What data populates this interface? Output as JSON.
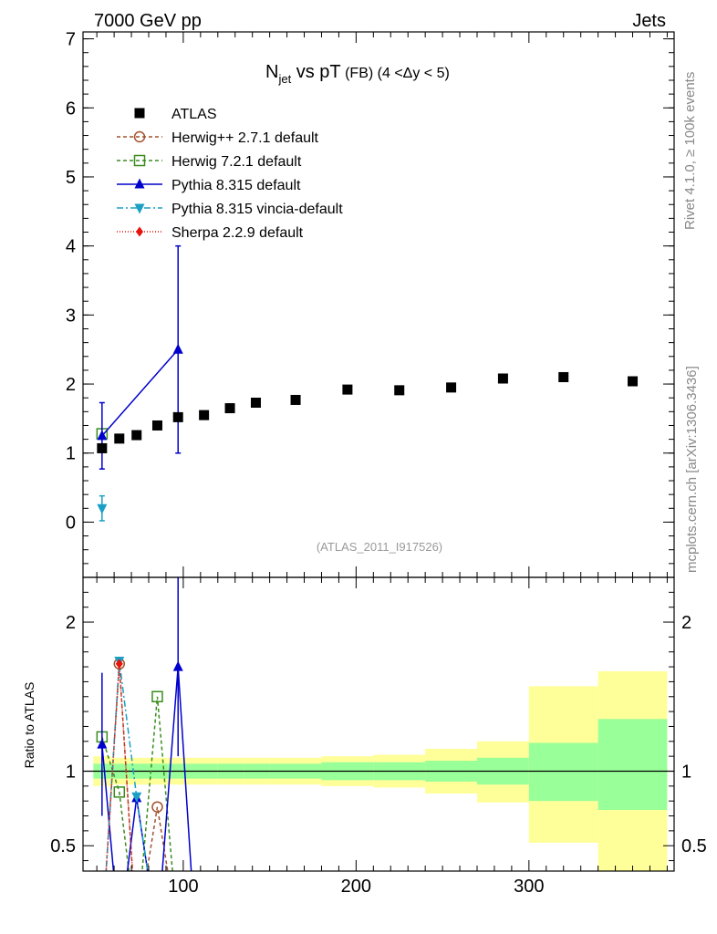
{
  "header": {
    "left": "7000 GeV pp",
    "right": "Jets"
  },
  "side_labels": {
    "rivet": "Rivet 4.1.0, ≥ 100k events",
    "mcplots": "mcplots.cern.ch [arXiv:1306.3436]"
  },
  "chart_data": {
    "type": "scatter",
    "title": {
      "main": "N",
      "sub": "jet",
      "mid": " vs pT",
      "small": " (FB) ",
      "cut": "(4 <Δy < 5)"
    },
    "watermark": "(ATLAS_2011_I917526)",
    "ratio_ylabel": "Ratio to ATLAS",
    "x_range": [
      42,
      384
    ],
    "main_y_range": [
      -0.8,
      7.1
    ],
    "ratio_y_range": [
      0.33,
      2.3
    ],
    "x_ticks": [
      100,
      200,
      300
    ],
    "main_y_ticks": [
      0,
      1,
      2,
      3,
      4,
      5,
      6,
      7
    ],
    "ratio_y_ticks": [
      0.5,
      1,
      2
    ],
    "data": {
      "name": "ATLAS",
      "x": [
        53,
        63,
        73,
        85,
        97,
        112,
        127,
        142,
        165,
        195,
        225,
        255,
        285,
        320,
        360
      ],
      "y": [
        1.07,
        1.21,
        1.26,
        1.4,
        1.52,
        1.55,
        1.65,
        1.73,
        1.77,
        1.92,
        1.91,
        1.95,
        2.08,
        2.1,
        2.04
      ]
    },
    "bands": [
      {
        "x0": 48,
        "x1": 58,
        "stat": [
          0.95,
          1.05
        ],
        "syst": [
          0.9,
          1.1
        ]
      },
      {
        "x0": 58,
        "x1": 68,
        "stat": [
          0.95,
          1.05
        ],
        "syst": [
          0.91,
          1.09
        ]
      },
      {
        "x0": 68,
        "x1": 79,
        "stat": [
          0.95,
          1.05
        ],
        "syst": [
          0.91,
          1.09
        ]
      },
      {
        "x0": 79,
        "x1": 91,
        "stat": [
          0.95,
          1.05
        ],
        "syst": [
          0.91,
          1.09
        ]
      },
      {
        "x0": 91,
        "x1": 104,
        "stat": [
          0.95,
          1.05
        ],
        "syst": [
          0.91,
          1.09
        ]
      },
      {
        "x0": 104,
        "x1": 120,
        "stat": [
          0.95,
          1.05
        ],
        "syst": [
          0.91,
          1.09
        ]
      },
      {
        "x0": 120,
        "x1": 135,
        "stat": [
          0.95,
          1.05
        ],
        "syst": [
          0.91,
          1.09
        ]
      },
      {
        "x0": 135,
        "x1": 150,
        "stat": [
          0.95,
          1.05
        ],
        "syst": [
          0.91,
          1.09
        ]
      },
      {
        "x0": 150,
        "x1": 180,
        "stat": [
          0.95,
          1.05
        ],
        "syst": [
          0.91,
          1.09
        ]
      },
      {
        "x0": 180,
        "x1": 210,
        "stat": [
          0.94,
          1.06
        ],
        "syst": [
          0.9,
          1.1
        ]
      },
      {
        "x0": 210,
        "x1": 240,
        "stat": [
          0.94,
          1.06
        ],
        "syst": [
          0.89,
          1.11
        ]
      },
      {
        "x0": 240,
        "x1": 270,
        "stat": [
          0.93,
          1.07
        ],
        "syst": [
          0.85,
          1.15
        ]
      },
      {
        "x0": 270,
        "x1": 300,
        "stat": [
          0.91,
          1.09
        ],
        "syst": [
          0.79,
          1.2
        ]
      },
      {
        "x0": 300,
        "x1": 340,
        "stat": [
          0.8,
          1.19
        ],
        "syst": [
          0.52,
          1.57
        ]
      },
      {
        "x0": 340,
        "x1": 380,
        "stat": [
          0.74,
          1.35
        ],
        "syst": [
          0.3,
          1.67
        ]
      }
    ],
    "series": [
      {
        "name": "Herwig++ 2.7.1 default",
        "color": "#a0522d",
        "dash": "4,3",
        "marker": "circle-open",
        "main": {
          "x": [],
          "y": [],
          "err": []
        },
        "ratio": {
          "x": [
            53,
            63,
            73,
            85,
            97
          ],
          "y": [
            -0.1,
            1.72,
            -0.1,
            0.76,
            -0.1
          ]
        }
      },
      {
        "name": "Herwig 7.2.1 default",
        "color": "#3a8c1e",
        "dash": "4,3",
        "marker": "square-open",
        "main": {
          "x": [
            53
          ],
          "y": [
            1.28
          ],
          "err": [
            0
          ]
        },
        "ratio": {
          "x": [
            53,
            63,
            73,
            85,
            97
          ],
          "y": [
            1.23,
            0.86,
            -0.1,
            1.5,
            -0.1
          ]
        }
      },
      {
        "name": "Pythia 8.315 default",
        "color": "#0000cc",
        "dash": "",
        "marker": "triangle-up",
        "main": {
          "x": [
            53,
            97
          ],
          "y": [
            1.25,
            2.5
          ],
          "err": [
            0.48,
            1.5
          ]
        },
        "ratio": {
          "x": [
            53,
            63,
            73,
            85,
            97,
            107
          ],
          "y": [
            1.18,
            -0.1,
            0.82,
            -0.1,
            1.7,
            -0.1
          ],
          "err": [
            0.48,
            0,
            0,
            0,
            0.6,
            0
          ]
        }
      },
      {
        "name": "Pythia 8.315 vincia-default",
        "color": "#1b9fc4",
        "dash": "7,3,2,3",
        "marker": "triangle-down",
        "main": {
          "x": [
            53
          ],
          "y": [
            0.2
          ],
          "err": [
            0.18
          ]
        },
        "ratio": {
          "x": [
            53,
            63,
            73,
            85
          ],
          "y": [
            -0.1,
            1.74,
            0.83,
            -0.1
          ]
        }
      },
      {
        "name": "Sherpa 2.2.9 default",
        "color": "#e8120c",
        "dash": "1,2",
        "marker": "diamond",
        "main": {
          "x": [],
          "y": [],
          "err": []
        },
        "ratio": {
          "x": [
            53,
            63,
            73
          ],
          "y": [
            -0.1,
            1.72,
            -0.1
          ]
        }
      }
    ]
  }
}
